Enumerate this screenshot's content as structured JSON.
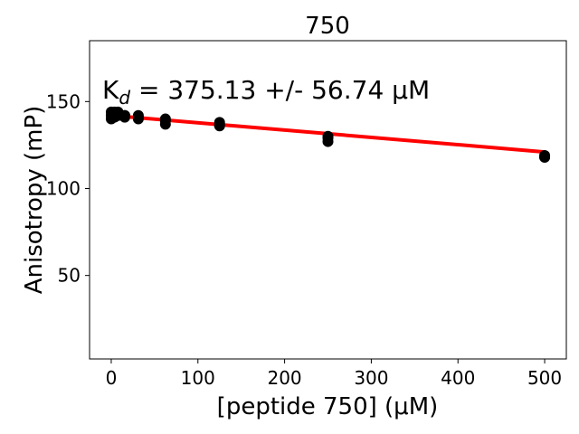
{
  "chart_data": {
    "type": "scatter",
    "title": "750",
    "xlabel": "[peptide 750] (μM)",
    "ylabel": "Anisotropy (mP)",
    "annotation": {
      "prefix": "K",
      "subscript": "d",
      "value_text": " = 375.13 +/- 56.74 μM"
    },
    "xlim": [
      -25,
      525
    ],
    "ylim": [
      2,
      185
    ],
    "xticks": [
      0,
      100,
      200,
      300,
      400,
      500
    ],
    "yticks": [
      50,
      100,
      150
    ],
    "grid": false,
    "colors": {
      "points": "#000000",
      "fit": "#ff0000"
    },
    "series": [
      {
        "kind": "points",
        "points": [
          [
            0,
            140
          ],
          [
            0,
            142
          ],
          [
            0,
            144
          ],
          [
            3.9,
            141
          ],
          [
            3.9,
            143
          ],
          [
            3.9,
            144
          ],
          [
            7.8,
            142
          ],
          [
            7.8,
            143
          ],
          [
            7.8,
            144
          ],
          [
            15.6,
            141
          ],
          [
            15.6,
            142
          ],
          [
            15.6,
            142
          ],
          [
            31.25,
            140
          ],
          [
            31.25,
            141
          ],
          [
            31.25,
            142
          ],
          [
            62.5,
            137
          ],
          [
            62.5,
            139
          ],
          [
            62.5,
            140
          ],
          [
            125,
            136
          ],
          [
            125,
            137
          ],
          [
            125,
            138
          ],
          [
            250,
            127
          ],
          [
            250,
            129
          ],
          [
            250,
            130
          ],
          [
            500,
            118
          ],
          [
            500,
            118
          ],
          [
            500,
            119
          ]
        ]
      },
      {
        "kind": "fit",
        "points": [
          [
            0,
            142
          ],
          [
            500,
            121
          ]
        ]
      }
    ]
  }
}
